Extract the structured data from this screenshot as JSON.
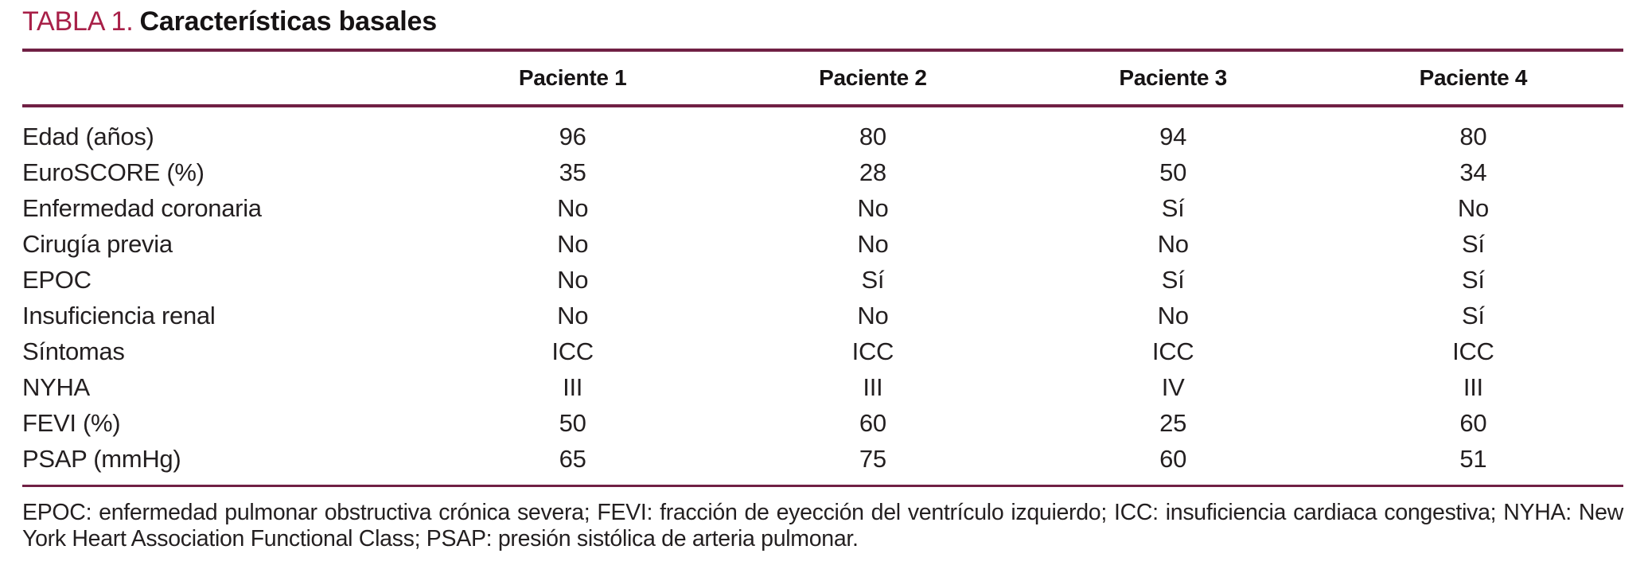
{
  "title": {
    "number": "TABLA 1.",
    "text": "Características basales"
  },
  "table": {
    "columns": [
      "Paciente 1",
      "Paciente 2",
      "Paciente 3",
      "Paciente 4"
    ],
    "rows": [
      {
        "label": "Edad (años)",
        "values": [
          "96",
          "80",
          "94",
          "80"
        ]
      },
      {
        "label": "EuroSCORE (%)",
        "values": [
          "35",
          "28",
          "50",
          "34"
        ]
      },
      {
        "label": "Enfermedad coronaria",
        "values": [
          "No",
          "No",
          "Sí",
          "No"
        ]
      },
      {
        "label": "Cirugía previa",
        "values": [
          "No",
          "No",
          "No",
          "Sí"
        ]
      },
      {
        "label": "EPOC",
        "values": [
          "No",
          "Sí",
          "Sí",
          "Sí"
        ]
      },
      {
        "label": "Insuficiencia renal",
        "values": [
          "No",
          "No",
          "No",
          "Sí"
        ]
      },
      {
        "label": "Síntomas",
        "values": [
          "ICC",
          "ICC",
          "ICC",
          "ICC"
        ]
      },
      {
        "label": "NYHA",
        "values": [
          "III",
          "III",
          "IV",
          "III"
        ]
      },
      {
        "label": "FEVI (%)",
        "values": [
          "50",
          "60",
          "25",
          "60"
        ]
      },
      {
        "label": "PSAP (mmHg)",
        "values": [
          "65",
          "75",
          "60",
          "51"
        ]
      }
    ]
  },
  "footnote": "EPOC: enfermedad pulmonar obstructiva crónica severa; FEVI: fracción de eyección del ventrículo izquierdo; ICC: insuficiencia cardiaca congestiva; NYHA: New York Heart Association Functional Class; PSAP: presión sistólica de arteria pulmonar.",
  "colors": {
    "accent": "#a82048",
    "rule": "#702044",
    "text": "#231f20"
  }
}
